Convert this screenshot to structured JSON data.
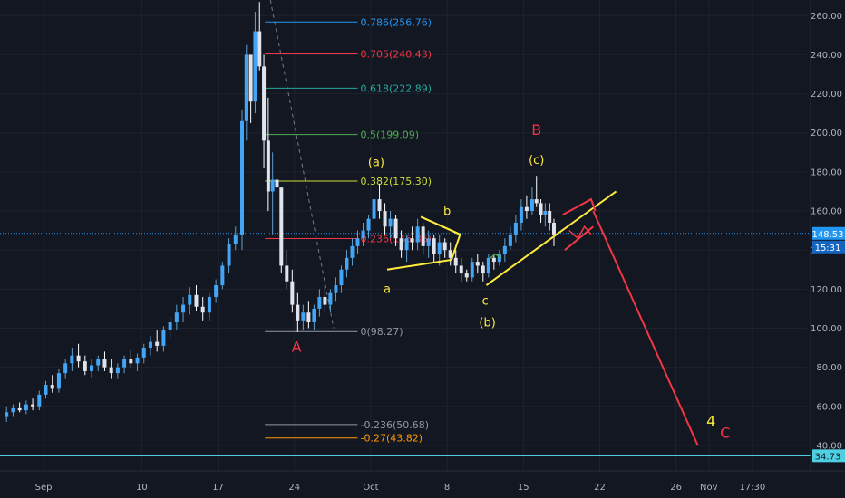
{
  "chart_data": {
    "type": "candlestick",
    "y_axis": {
      "ticks": [
        "260.00",
        "240.00",
        "220.00",
        "200.00",
        "180.00",
        "160.00",
        "140.00",
        "120.00",
        "100.00",
        "80.00",
        "60.00",
        "40.00"
      ],
      "range": [
        27,
        268
      ]
    },
    "x_axis": {
      "ticks": [
        {
          "day": 0,
          "label": "Sep"
        },
        {
          "day": 9,
          "label": "10"
        },
        {
          "day": 16,
          "label": "17"
        },
        {
          "day": 23,
          "label": "24"
        },
        {
          "day": 30,
          "label": "Oct"
        },
        {
          "day": 37,
          "label": "8"
        },
        {
          "day": 44,
          "label": "15"
        },
        {
          "day": 51,
          "label": "22"
        },
        {
          "day": 58,
          "label": "26"
        },
        {
          "day": 61,
          "label": "Nov"
        },
        {
          "day": 65,
          "label": "17:30"
        }
      ],
      "range": [
        -4,
        70
      ]
    },
    "price_labels": {
      "current": {
        "value": 148.53,
        "label": "148.53",
        "countdown": "15:31",
        "color": "#2196f3"
      },
      "horizontal": {
        "value": 34.73,
        "label": "34.73",
        "color": "#4dd0e1"
      }
    },
    "fibonacci": [
      {
        "ratio": "0.786",
        "price": 256.76,
        "label": "0.786(256.76)",
        "color": "#2196f3"
      },
      {
        "ratio": "0.705",
        "price": 240.43,
        "label": "0.705(240.43)",
        "color": "#f23645"
      },
      {
        "ratio": "0.618",
        "price": 222.89,
        "label": "0.618(222.89)",
        "color": "#26a69a"
      },
      {
        "ratio": "0.5",
        "price": 199.09,
        "label": "0.5(199.09)",
        "color": "#4caf50"
      },
      {
        "ratio": "0.382",
        "price": 175.3,
        "label": "0.382(175.30)",
        "color": "#cddc39"
      },
      {
        "ratio": "0.236",
        "price": 145.86,
        "label": "0.236(145.86)",
        "color": "#f23645"
      },
      {
        "ratio": "0",
        "price": 98.27,
        "label": "0(98.27)",
        "color": "#9598a1"
      },
      {
        "ratio": "-0.236",
        "price": 50.68,
        "label": "-0.236(50.68)",
        "color": "#9598a1"
      },
      {
        "ratio": "-0.27",
        "price": 43.82,
        "label": "-0.27(43.82)",
        "color": "#ff9800"
      }
    ],
    "wave_labels": [
      {
        "text": "(a)",
        "day": 30.5,
        "price": 183,
        "color": "#ffeb3b"
      },
      {
        "text": "b",
        "day": 37,
        "price": 158,
        "color": "#ffeb3b"
      },
      {
        "text": "a",
        "day": 31.5,
        "price": 118,
        "color": "#ffeb3b"
      },
      {
        "text": "c",
        "day": 40.5,
        "price": 112,
        "color": "#ffeb3b"
      },
      {
        "text": "(b)",
        "day": 40.7,
        "price": 101,
        "color": "#ffeb3b"
      },
      {
        "text": "(c)",
        "day": 45.2,
        "price": 184,
        "color": "#ffeb3b"
      },
      {
        "text": "B",
        "day": 45.2,
        "price": 199,
        "color": "#f23645"
      },
      {
        "text": "A",
        "day": 23.2,
        "price": 88,
        "color": "#f23645"
      },
      {
        "text": "4",
        "day": 61.2,
        "price": 50,
        "color": "#ffeb3b"
      },
      {
        "text": "C",
        "day": 62.5,
        "price": 44,
        "color": "#f23645"
      }
    ]
  }
}
